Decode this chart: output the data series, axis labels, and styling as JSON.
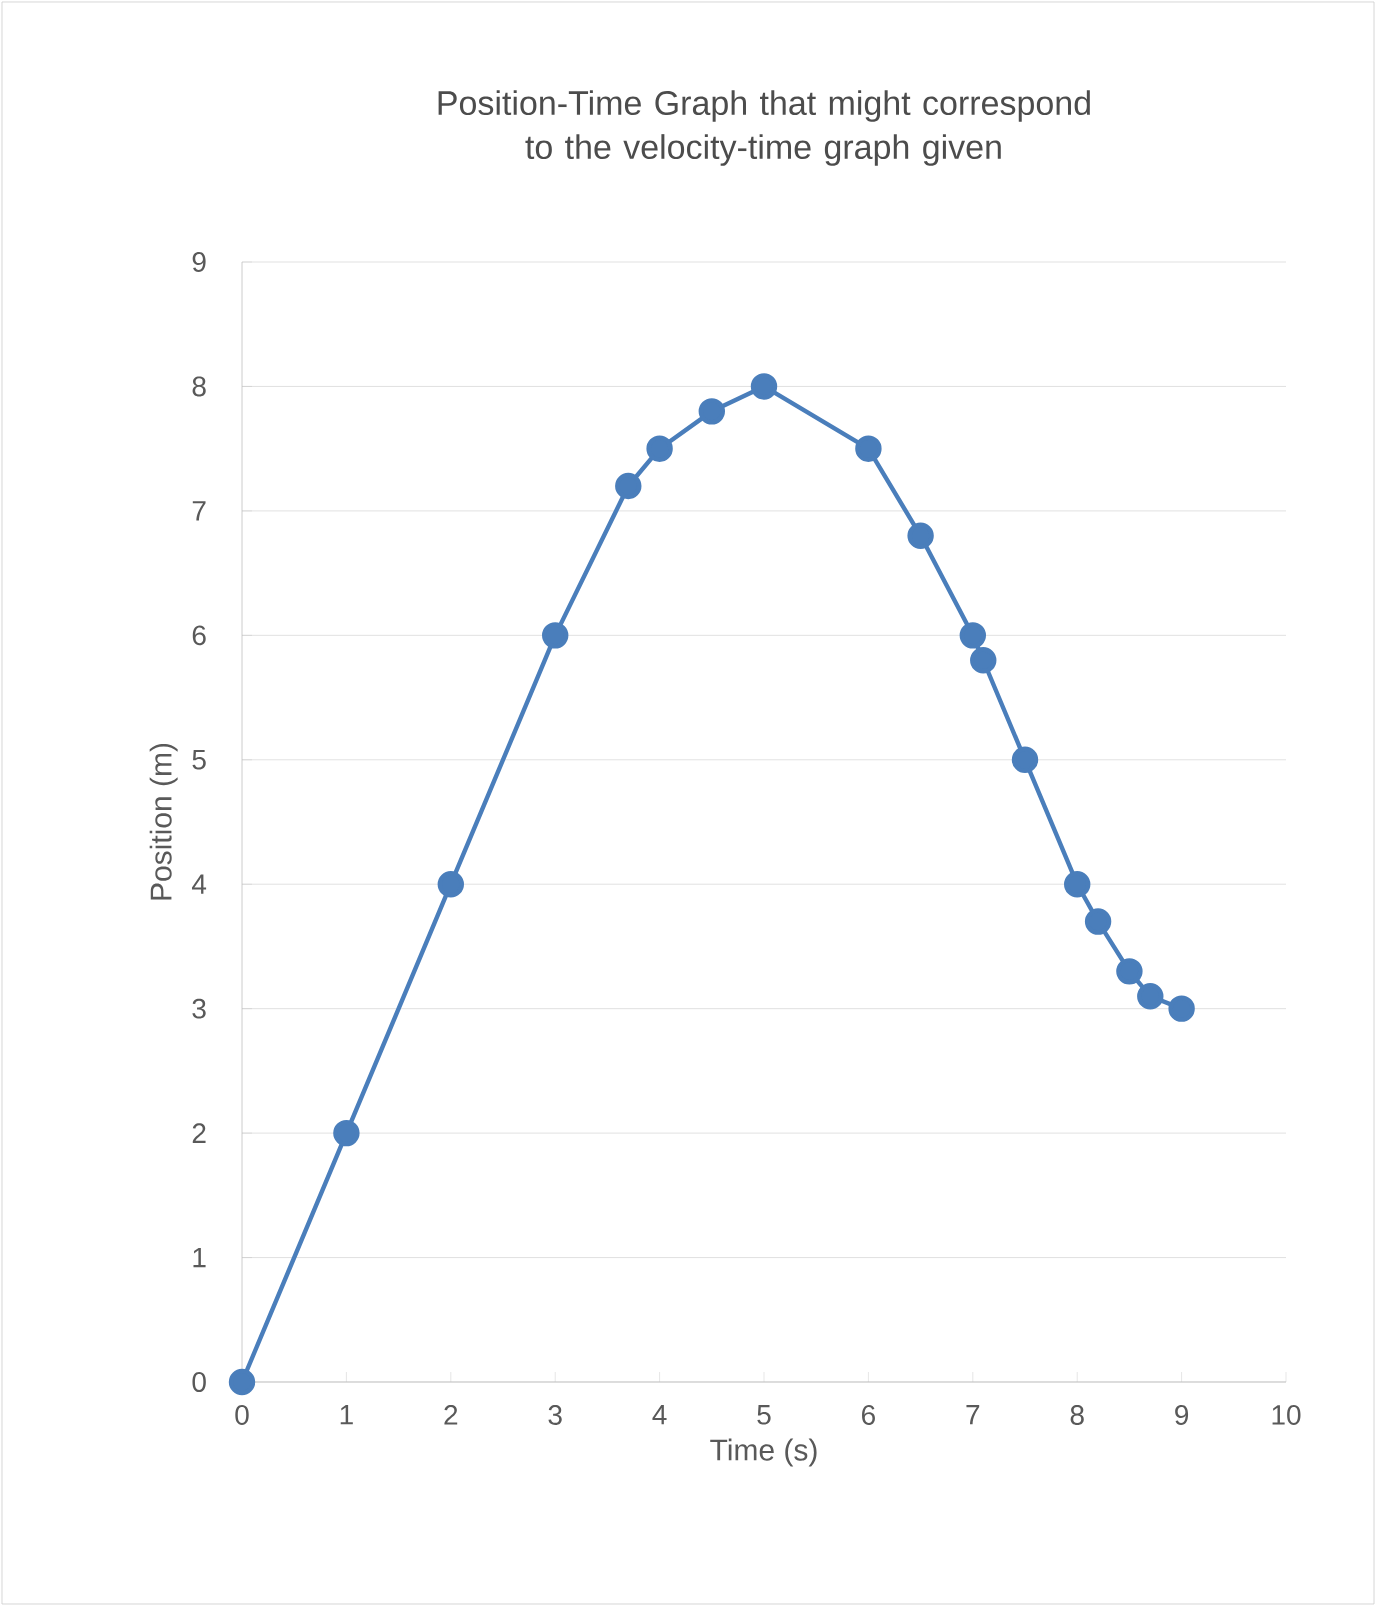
{
  "chart_data": {
    "type": "line",
    "title": "Position-Time Graph that might correspond to the velocity-time graph given",
    "xlabel": "Time (s)",
    "ylabel": "Position (m)",
    "x": [
      0,
      1,
      2,
      3,
      3.7,
      4,
      4.5,
      5,
      6,
      6.5,
      7,
      7.1,
      7.5,
      8,
      8.2,
      8.5,
      8.7,
      9
    ],
    "series": [
      {
        "color": "#4a7ebb",
        "values": [
          0,
          2,
          4,
          6,
          7.2,
          7.5,
          7.8,
          8,
          7.5,
          6.8,
          6,
          5.8,
          5,
          4,
          3.7,
          3.3,
          3.1,
          3
        ]
      }
    ],
    "xlim": [
      0,
      10
    ],
    "xticks": [
      0,
      1,
      2,
      3,
      4,
      5,
      6,
      7,
      8,
      9,
      10
    ],
    "ylim": [
      0,
      9
    ],
    "yticks": [
      0,
      1,
      2,
      3,
      4,
      5,
      6,
      7,
      8,
      9
    ],
    "grid": "y",
    "marker": "circle",
    "line_style": "solid"
  }
}
